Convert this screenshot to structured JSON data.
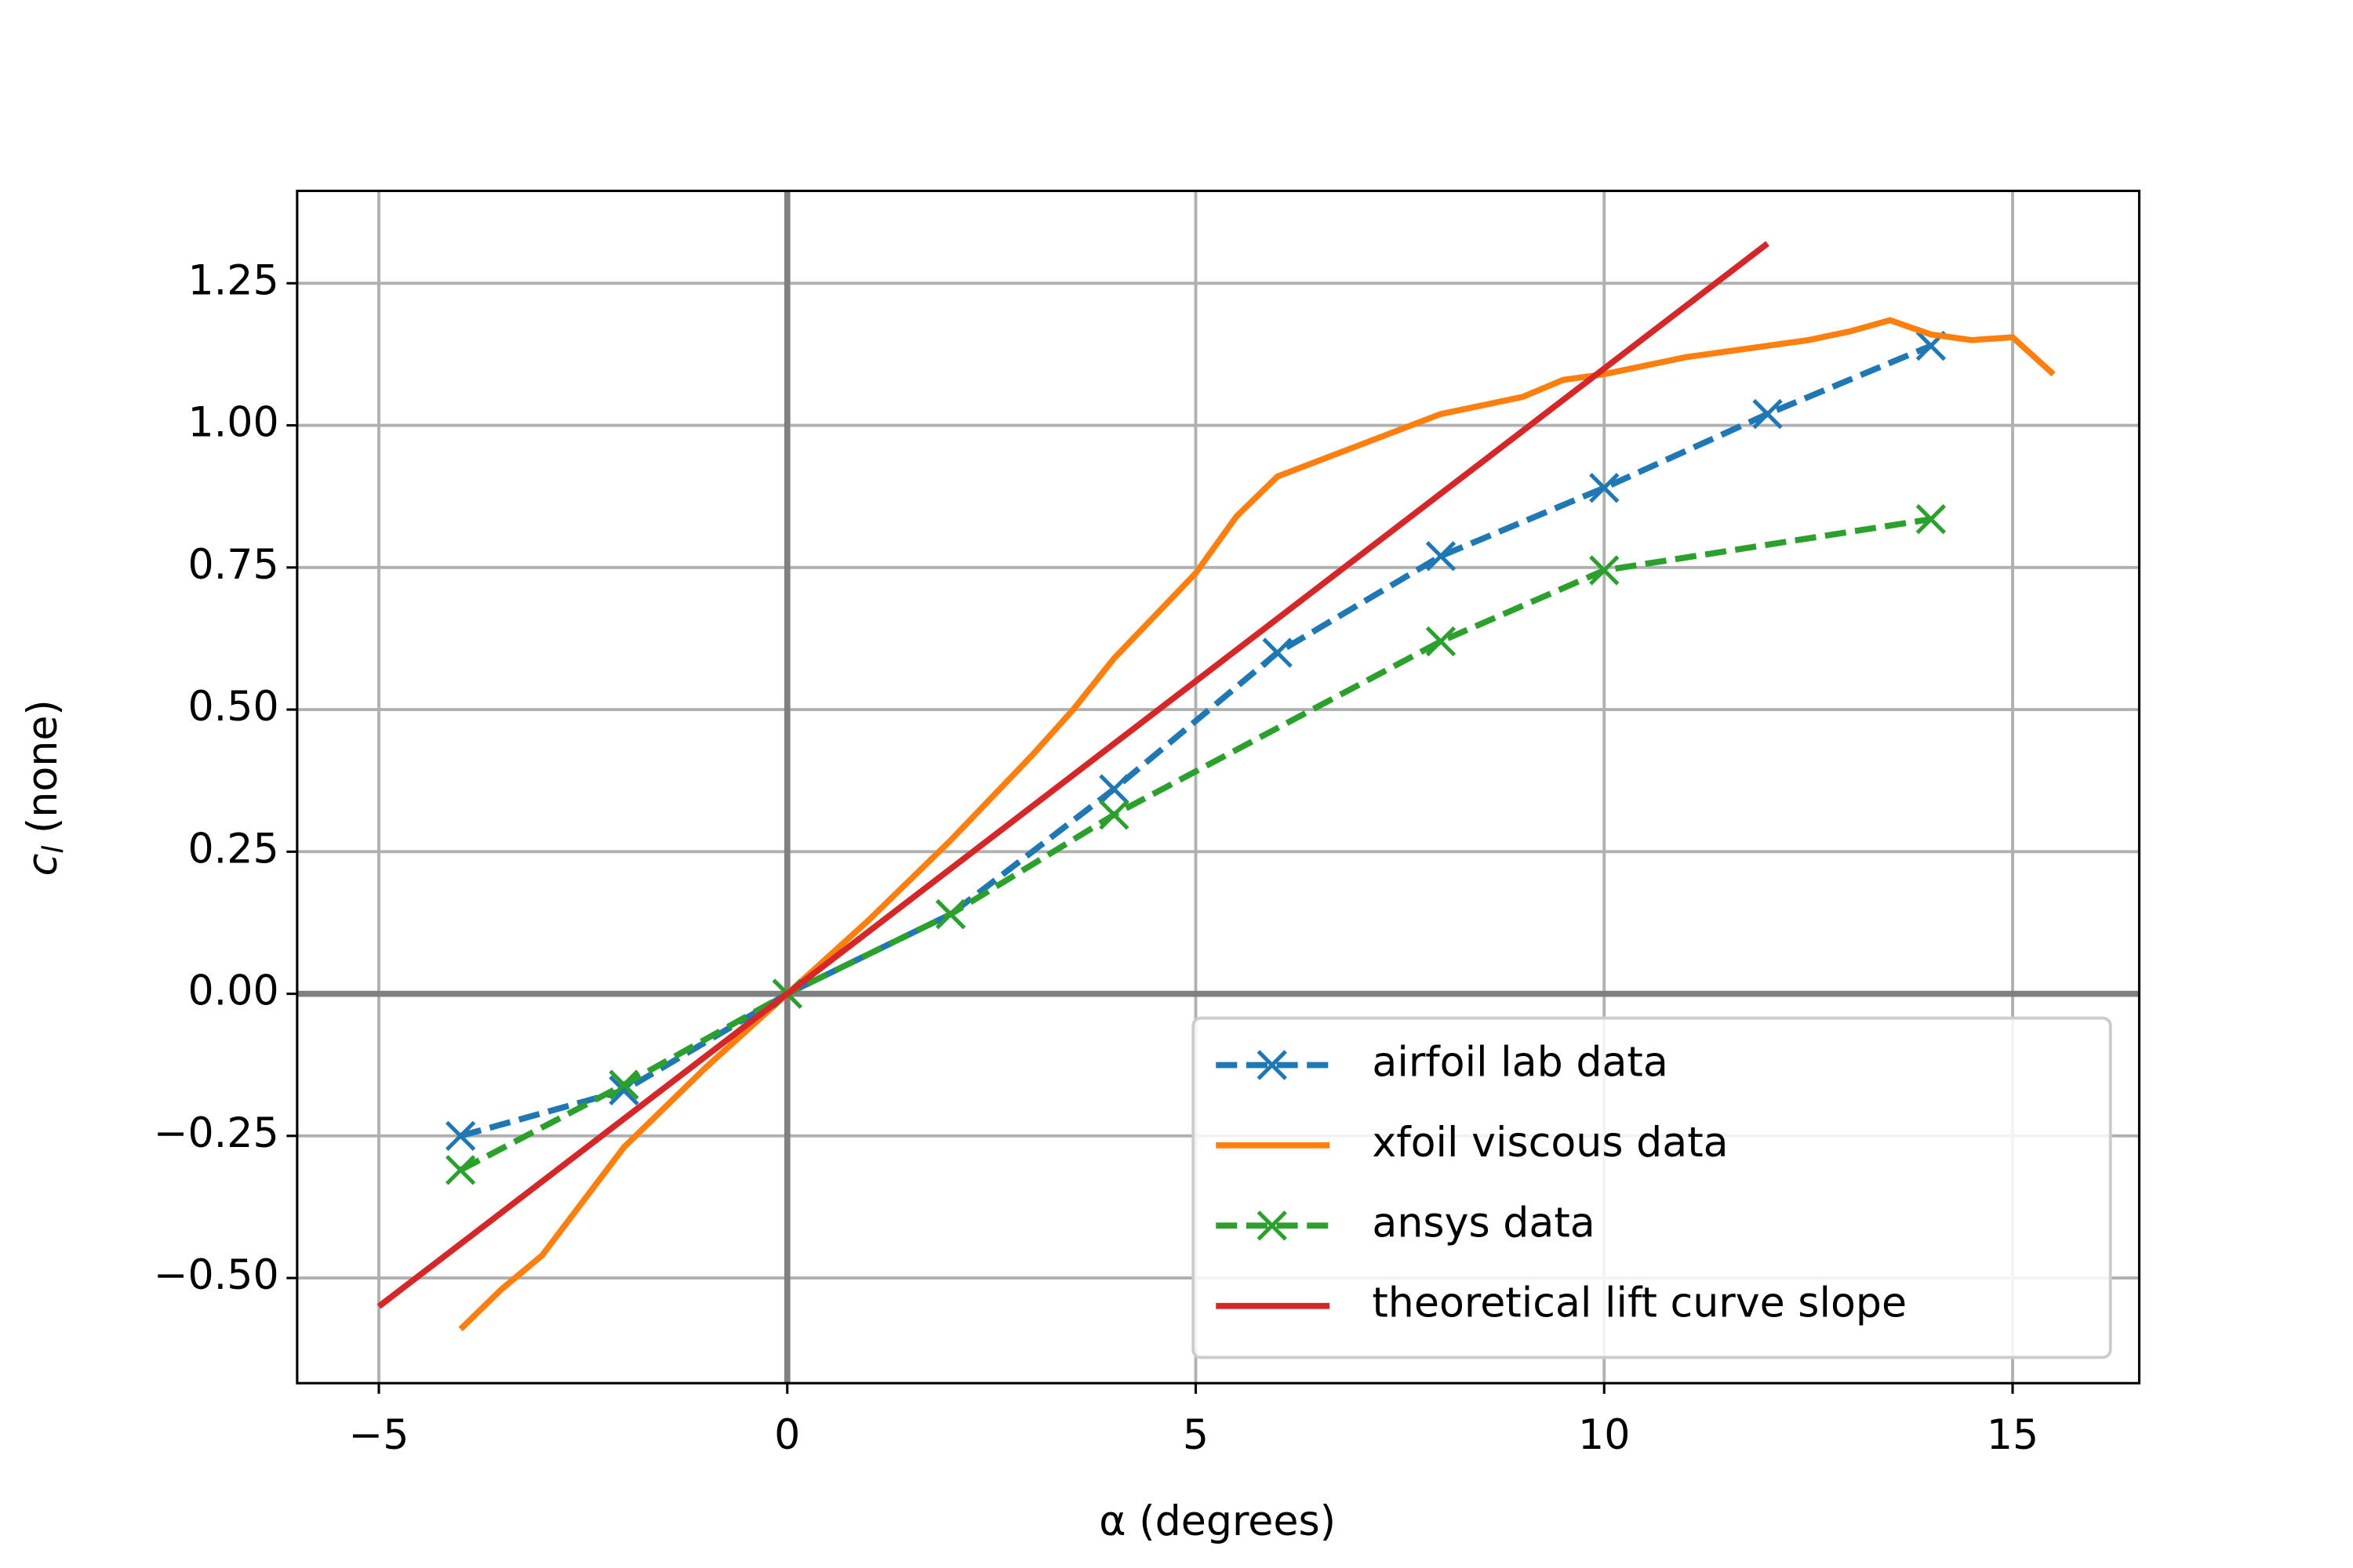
{
  "chart_data": {
    "type": "line",
    "xlabel": "α (degrees)",
    "ylabel": "c",
    "ylabel_subscript": "l",
    "ylabel_unit": "(none)",
    "xlim": [
      -6.0,
      16.55
    ],
    "ylim": [
      -0.685,
      1.4125
    ],
    "xticks": [
      {
        "value": -5,
        "label": "−5"
      },
      0,
      5,
      10,
      15
    ],
    "yticks": [
      {
        "value": -0.5,
        "label": "−0.50"
      },
      {
        "value": -0.25,
        "label": "−0.25"
      },
      {
        "value": 0,
        "label": "0.00"
      },
      0.25,
      {
        "value": 0.5,
        "label": "0.50"
      },
      0.75,
      {
        "value": 1.0,
        "label": "1.00"
      },
      1.25
    ],
    "grid": true,
    "zero_lines": true,
    "legend": "lower right",
    "series": [
      {
        "name": "airfoil lab data",
        "color": "#1f77b4",
        "linestyle": "dashed",
        "marker": "x",
        "x": [
          -4,
          -2,
          0,
          2,
          4,
          6,
          8,
          10,
          12,
          14
        ],
        "values": [
          -0.25,
          -0.17,
          0,
          0.14,
          0.36,
          0.6,
          0.77,
          0.89,
          1.02,
          1.14
        ]
      },
      {
        "name": "xfoil viscous data",
        "color": "#ff7f0e",
        "linestyle": "solid",
        "x": [
          -4,
          -3.5,
          -3,
          -2,
          -1,
          0,
          1,
          2,
          3,
          3.5,
          4,
          5,
          5.5,
          6,
          7,
          8,
          9,
          9.5,
          10,
          11,
          12,
          12.5,
          13,
          13.5,
          14,
          14.5,
          15,
          15.5
        ],
        "values": [
          -0.59,
          -0.52,
          -0.46,
          -0.27,
          -0.13,
          0,
          0.13,
          0.27,
          0.42,
          0.5,
          0.59,
          0.74,
          0.84,
          0.91,
          0.965,
          1.02,
          1.05,
          1.08,
          1.09,
          1.12,
          1.14,
          1.15,
          1.165,
          1.185,
          1.16,
          1.15,
          1.155,
          1.09
        ]
      },
      {
        "name": "ansys data",
        "color": "#2ca02c",
        "linestyle": "dashed",
        "marker": "x",
        "x": [
          -4,
          -2,
          0,
          2,
          4,
          8,
          10,
          14
        ],
        "values": [
          -0.31,
          -0.16,
          0,
          0.14,
          0.315,
          0.62,
          0.745,
          0.835
        ]
      },
      {
        "name": "theoretical lift curve slope",
        "color": "#d62728",
        "linestyle": "solid",
        "x": [
          -5,
          12
        ],
        "values": [
          -0.55,
          1.32
        ]
      }
    ]
  }
}
